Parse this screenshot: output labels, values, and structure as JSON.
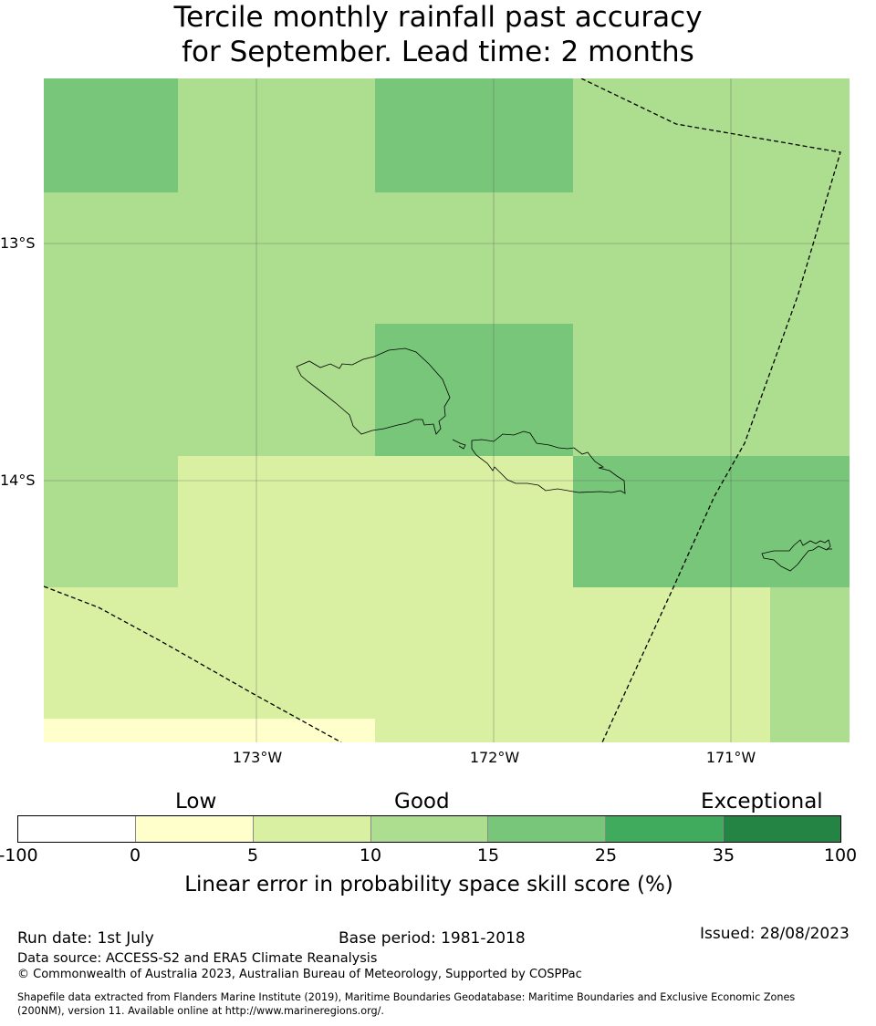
{
  "title": {
    "line1": "Tercile monthly rainfall past accuracy",
    "line2": "for September. Lead time: 2 months"
  },
  "map": {
    "lat_labels": [
      "13°S",
      "14°S"
    ],
    "lon_labels": [
      "173°W",
      "172°W",
      "171°W"
    ]
  },
  "colorbar": {
    "categories": [
      "Low",
      "Good",
      "Exceptional"
    ],
    "ticks": [
      "-100",
      "0",
      "5",
      "10",
      "15",
      "25",
      "35",
      "100"
    ],
    "colors": [
      "#ffffff",
      "#ffffcc",
      "#d9f0a3",
      "#addd8e",
      "#78c679",
      "#41ab5d",
      "#238443"
    ],
    "label": "Linear error in probability space skill score (%)"
  },
  "footer": {
    "run_date": "Run date: 1st July",
    "base_period": "Base period: 1981-2018",
    "issued": "Issued: 28/08/2023",
    "data_source": "Data source: ACCESS-S2 and ERA5 Climate Reanalysis",
    "copyright": "© Commonwealth of Australia 2023, Australian Bureau of Meteorology, Supported by COSPPac",
    "shapefile_line1": "Shapefile data extracted from Flanders Marine Institute (2019), Maritime Boundaries Geodatabase: Maritime Boundaries and Exclusive Economic Zones",
    "shapefile_line2": "(200NM), version 11. Available online at http://www.marineregions.org/."
  }
}
